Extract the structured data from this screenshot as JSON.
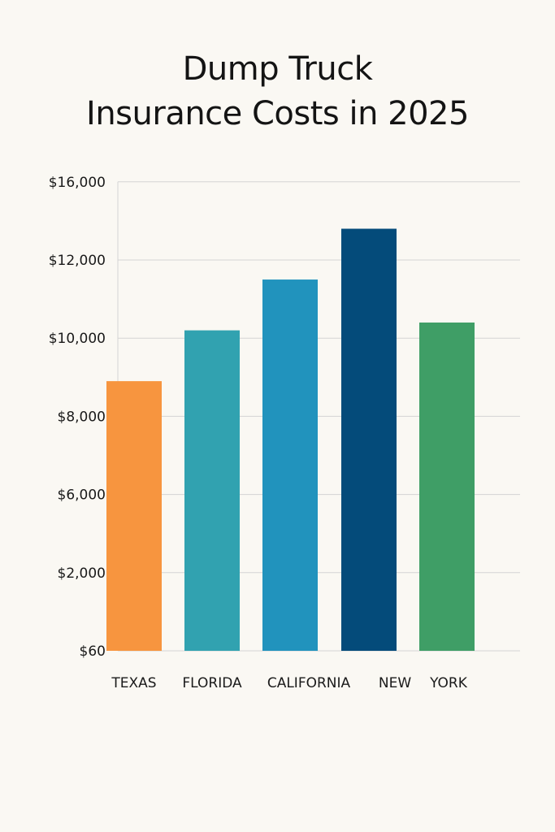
{
  "chart_data": {
    "type": "bar",
    "title_lines": [
      "Dump Truck",
      "Insurance Costs in 2025"
    ],
    "xlabel": "",
    "ylabel": "",
    "y_tick_labels": [
      "$16,000",
      "$12,000",
      "$10,000",
      "$8,000",
      "$6,000",
      "$2,000",
      "$60"
    ],
    "category_labels_shown": [
      "TEXAS",
      "FLORIDA",
      "CALIFORNIA",
      "NEW",
      "YORK"
    ],
    "bars": [
      {
        "tick_index_value": 3.45,
        "color": "#f7953f"
      },
      {
        "tick_index_value": 4.1,
        "color": "#31a2b0"
      },
      {
        "tick_index_value": 4.75,
        "color": "#2193bd"
      },
      {
        "tick_index_value": 5.4,
        "color": "#044b7a"
      },
      {
        "tick_index_value": 4.2,
        "color": "#3f9e66"
      }
    ],
    "grid": true,
    "legend": "none"
  }
}
